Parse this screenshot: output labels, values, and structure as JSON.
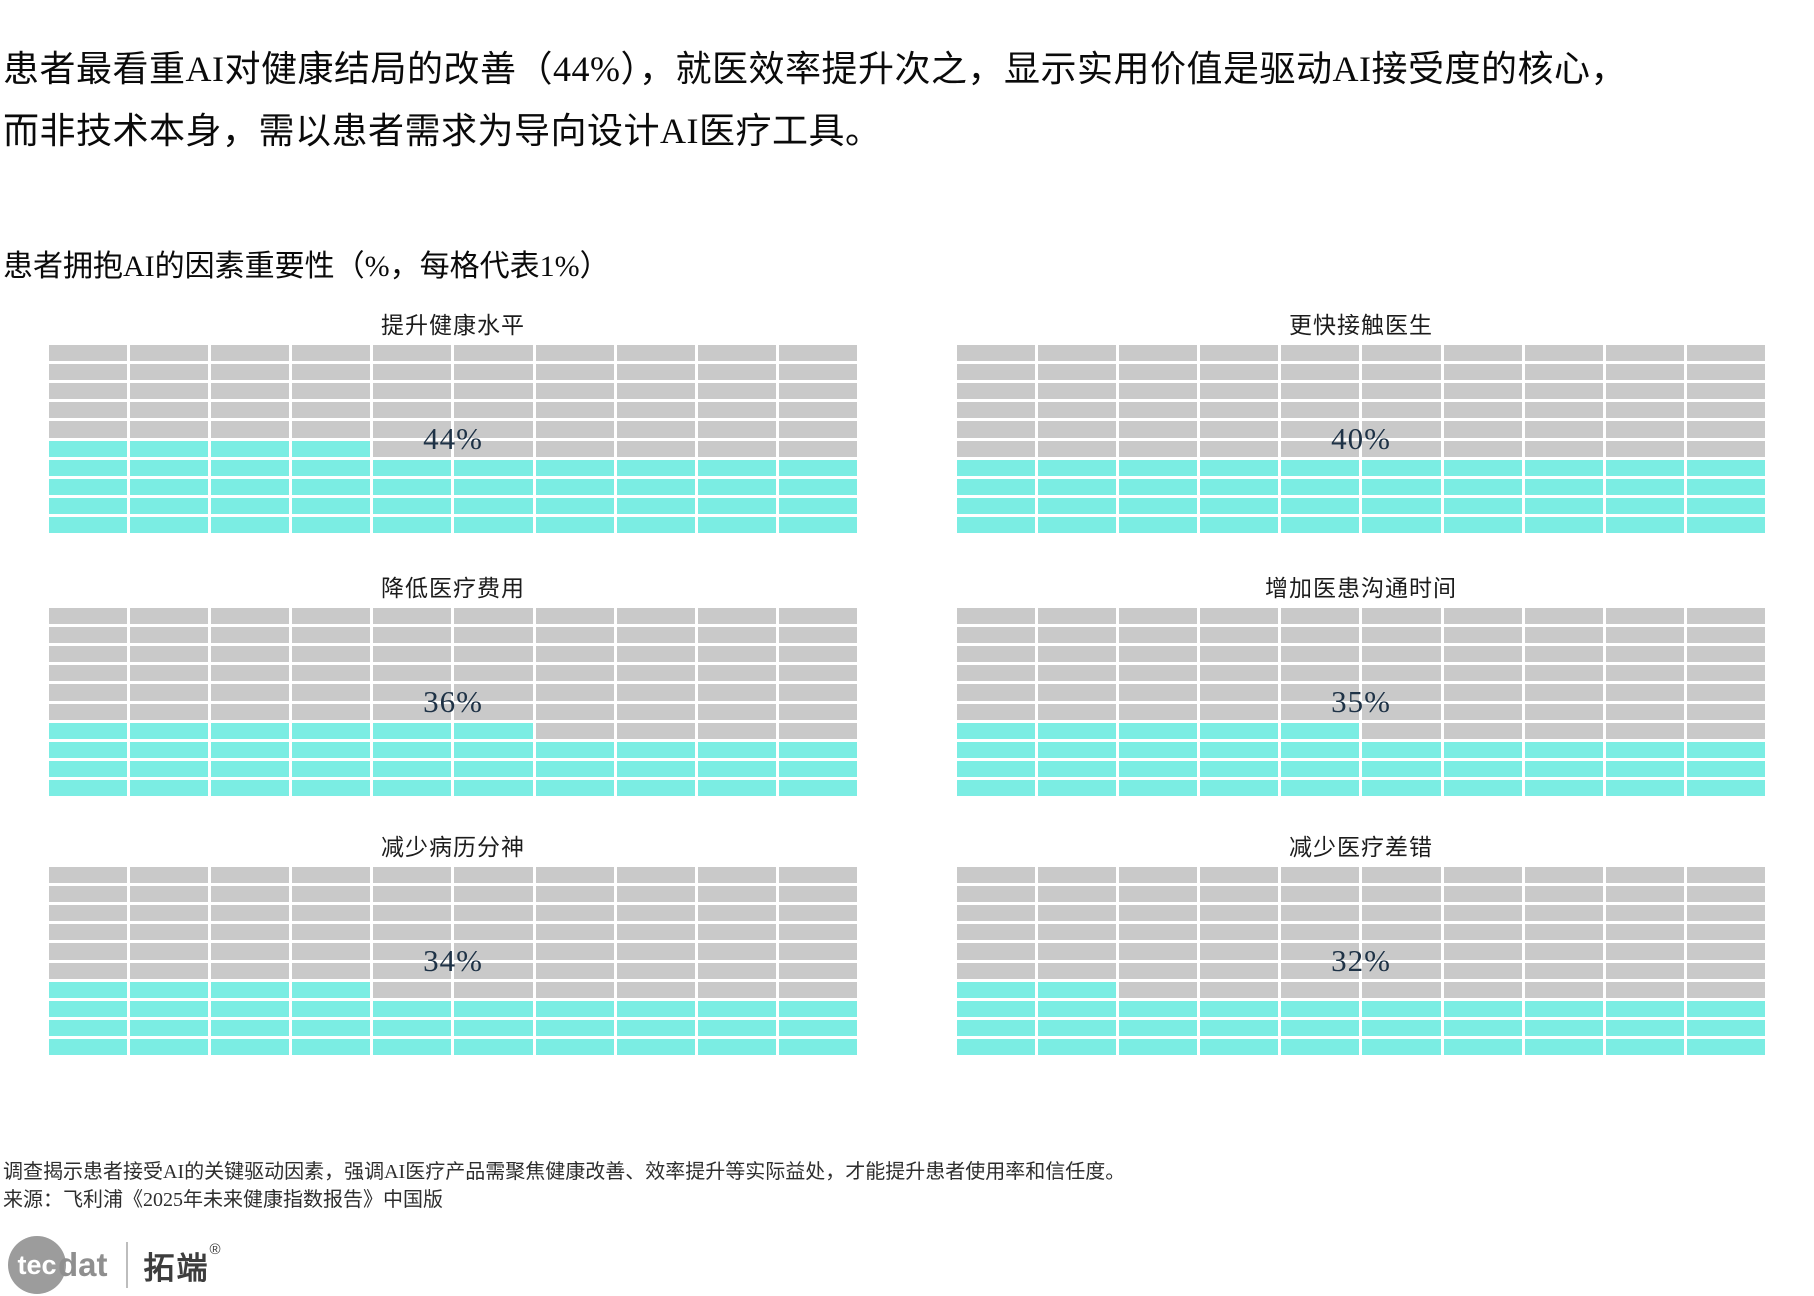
{
  "headline": {
    "line1": "患者最看重AI对健康结局的改善（44%），就医效率提升次之，显示实用价值是驱动AI接受度的核心，",
    "line2": "而非技术本身，需以患者需求为导向设计AI医疗工具。"
  },
  "subtitle": "患者拥抱AI的因素重要性（%，每格代表1%）",
  "chart_data": {
    "type": "waffle",
    "layout": "2 columns x 3 rows of 10x10 waffle grids",
    "grid": {
      "rows": 10,
      "cols": 10,
      "cell_unit": "1%"
    },
    "fill_origin": "bottom-left",
    "legend_position": "none",
    "title": "患者拥抱AI的因素重要性（%，每格代表1%）",
    "series": [
      {
        "title": "提升健康水平",
        "value": 44,
        "label": "44%"
      },
      {
        "title": "更快接触医生",
        "value": 40,
        "label": "40%"
      },
      {
        "title": "降低医疗费用",
        "value": 36,
        "label": "36%"
      },
      {
        "title": "增加医患沟通时间",
        "value": 35,
        "label": "35%"
      },
      {
        "title": "减少病历分神",
        "value": 34,
        "label": "34%"
      },
      {
        "title": "减少医疗差错",
        "value": 32,
        "label": "32%"
      }
    ],
    "colors": {
      "filled": "#7BEDE3",
      "empty": "#C9C9C9",
      "value_label": "#1E3246"
    }
  },
  "footer": {
    "note": "调查揭示患者接受AI的关键驱动因素，强调AI医疗产品需聚焦健康改善、效率提升等实际益处，才能提升患者使用率和信任度。",
    "source": "来源：飞利浦《2025年未来健康指数报告》中国版"
  },
  "logo": {
    "tec": "tec",
    "dat": "dat",
    "zh": "拓端",
    "reg": "®"
  }
}
